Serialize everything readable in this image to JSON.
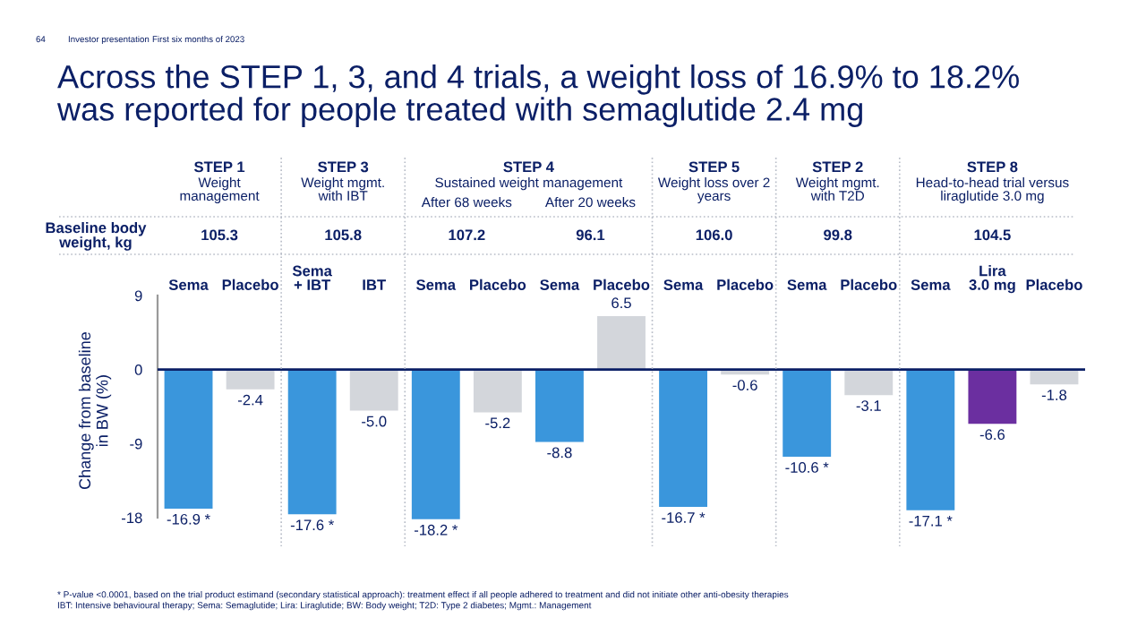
{
  "chart_data": {
    "type": "bar",
    "title": "Across the STEP 1, 3, and 4 trials, a weight loss of 16.9% to 18.2%\nwas reported for people treated with semaglutide 2.4 mg",
    "ylabel": "Change from baseline\nin BW (%)",
    "categories": [
      "Sema",
      "Placebo",
      "Sema\n+ IBT",
      "IBT",
      "Sema",
      "Placebo",
      "Sema",
      "Placebo",
      "Sema",
      "Placebo",
      "Sema",
      "Placebo",
      "Sema",
      "Lira 3.0 mg",
      "Placebo"
    ],
    "values": [
      -16.9,
      -2.4,
      -17.6,
      -5.0,
      -18.2,
      -5.2,
      -8.8,
      6.5,
      -16.7,
      -0.6,
      -10.6,
      -3.1,
      -17.1,
      -6.6,
      -1.8
    ],
    "colors": [
      "#3a96dc",
      "#d3d6db",
      "#3a96dc",
      "#d3d6db",
      "#3a96dc",
      "#d3d6db",
      "#3a96dc",
      "#d3d6db",
      "#3a96dc",
      "#d3d6db",
      "#3a96dc",
      "#d3d6db",
      "#3a96dc",
      "#6b2fa0",
      "#d3d6db"
    ],
    "value_labels": [
      "-16.9 *",
      "-2.4",
      "-17.6 *",
      "-5.0",
      "-18.2 *",
      "-5.2",
      "-8.8",
      "6.5",
      "-16.7 *",
      "-0.6",
      "-10.6 *",
      "-3.1",
      "-17.1 *",
      "-6.6",
      "-1.8"
    ],
    "ylim": [
      -19,
      9
    ],
    "yticks": [
      -18,
      -9,
      0,
      9
    ],
    "grid": false,
    "ref_lines": [
      {
        "axis": "y",
        "value": 0,
        "color": "#0b1f66"
      }
    ],
    "legend": false,
    "annotations": [
      "64",
      "Investor presentation",
      "First six months of 2023",
      "STEP 1",
      "Weight\nmanagement",
      "STEP 3",
      "Weight mgmt.\nwith IBT",
      "STEP 4",
      "Sustained weight management",
      "After 68 weeks",
      "After 20 weeks",
      "STEP 5",
      "Weight loss over 2\nyears",
      "STEP 2",
      "Weight mgmt.\nwith T2D",
      "STEP 8",
      "Head-to-head trial versus\nliraglutide 3.0 mg",
      "Baseline body\nweight, kg",
      "105.3",
      "105.8",
      "107.2",
      "96.1",
      "106.0",
      "99.8",
      "104.5",
      "* P-value <0.0001, based on the trial product estimand (secondary statistical approach): treatment effect if all people adhered to treatment and did not initiate other anti-obesity therapies",
      "IBT: Intensive behavioural therapy; Sema: Semaglutide; Lira: Liraglutide; BW: Body weight; T2D: Type 2 diabetes; Mgmt.: Management"
    ]
  }
}
